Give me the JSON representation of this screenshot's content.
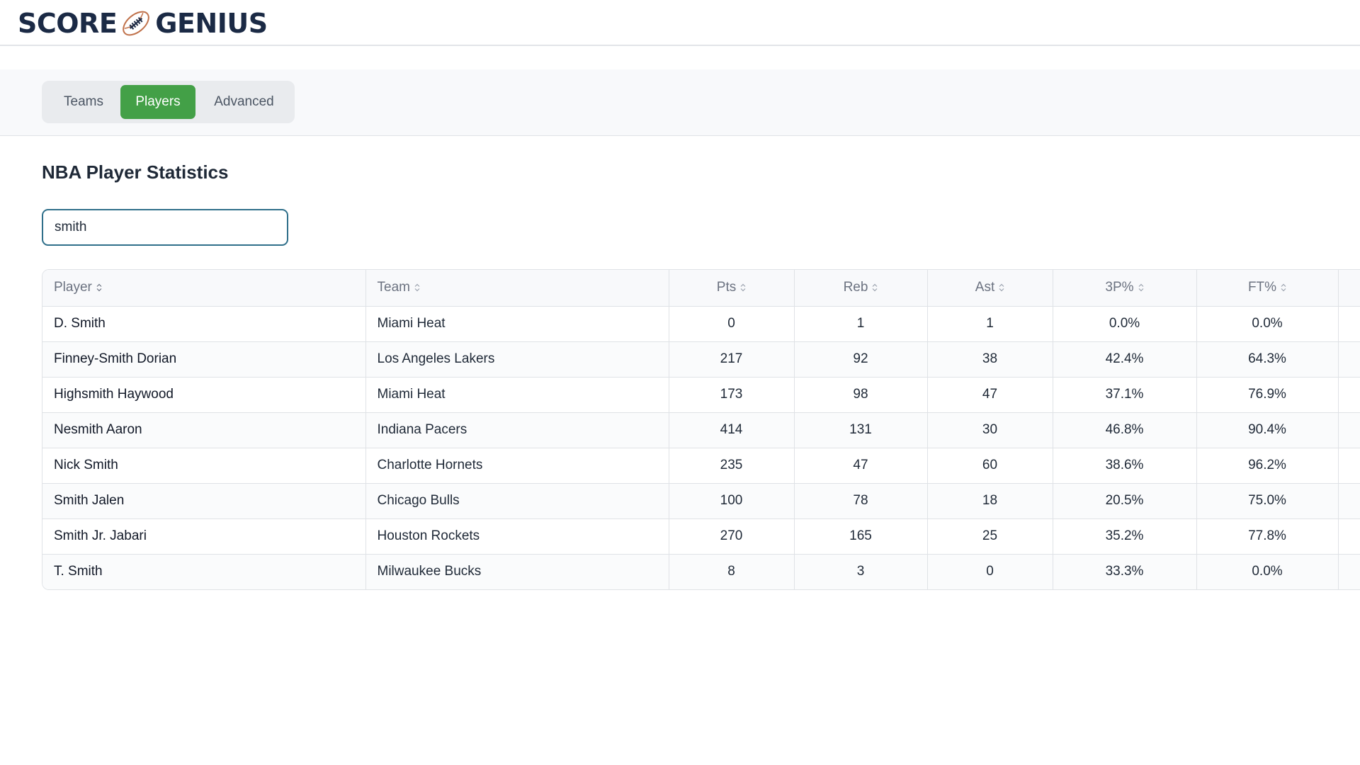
{
  "brand": {
    "name_left": "SCORE",
    "name_right": "GENIUS",
    "logo_icon": "football-icon",
    "color": "#1b2a45",
    "accent": "#c0714a"
  },
  "tabs": [
    {
      "label": "Teams",
      "active": false
    },
    {
      "label": "Players",
      "active": true
    },
    {
      "label": "Advanced",
      "active": false
    }
  ],
  "accent_color": "#43a047",
  "page_title": "NBA Player Statistics",
  "search": {
    "value": "smith",
    "placeholder": ""
  },
  "table": {
    "columns": [
      "Player",
      "Team",
      "Pts",
      "Reb",
      "Ast",
      "3P%",
      "FT%"
    ],
    "rows": [
      [
        "D. Smith",
        "Miami Heat",
        "0",
        "1",
        "1",
        "0.0%",
        "0.0%"
      ],
      [
        "Finney-Smith Dorian",
        "Los Angeles Lakers",
        "217",
        "92",
        "38",
        "42.4%",
        "64.3%"
      ],
      [
        "Highsmith Haywood",
        "Miami Heat",
        "173",
        "98",
        "47",
        "37.1%",
        "76.9%"
      ],
      [
        "Nesmith Aaron",
        "Indiana Pacers",
        "414",
        "131",
        "30",
        "46.8%",
        "90.4%"
      ],
      [
        "Nick Smith",
        "Charlotte Hornets",
        "235",
        "47",
        "60",
        "38.6%",
        "96.2%"
      ],
      [
        "Smith Jalen",
        "Chicago Bulls",
        "100",
        "78",
        "18",
        "20.5%",
        "75.0%"
      ],
      [
        "Smith Jr. Jabari",
        "Houston Rockets",
        "270",
        "165",
        "25",
        "35.2%",
        "77.8%"
      ],
      [
        "T. Smith",
        "Milwaukee Bucks",
        "8",
        "3",
        "0",
        "33.3%",
        "0.0%"
      ]
    ]
  }
}
